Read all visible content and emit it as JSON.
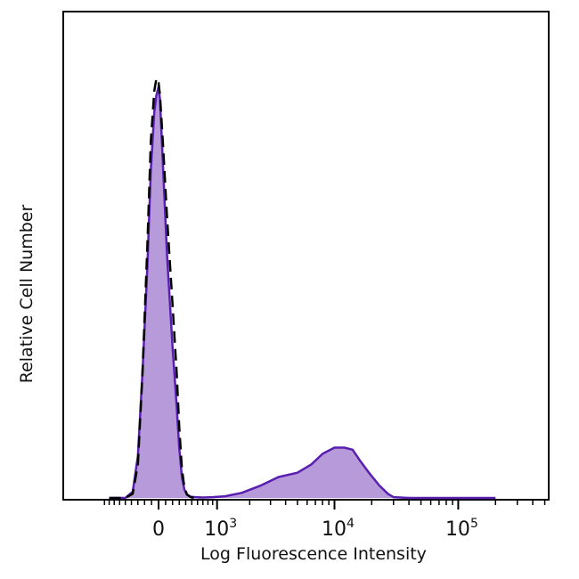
{
  "chart_data": {
    "type": "area",
    "title": "",
    "xlabel": "Log Fluorescence Intensity",
    "ylabel": "Relative Cell Number",
    "xscale": "biexponential",
    "ylim": [
      0,
      100
    ],
    "grid": false,
    "legend": "none",
    "x_ticks": [
      {
        "value": 0,
        "base": "0",
        "exponent": ""
      },
      {
        "value": 1000,
        "base": "10",
        "exponent": "3"
      },
      {
        "value": 10000,
        "base": "10",
        "exponent": "4"
      },
      {
        "value": 100000,
        "base": "10",
        "exponent": "5"
      }
    ],
    "series": [
      {
        "style": "filled",
        "fill_color": "#b79ad9",
        "line_color": "#5a1fb0",
        "x": [
          -800,
          -500,
          -380,
          -300,
          -230,
          -160,
          -110,
          -60,
          -30,
          0,
          20,
          60,
          120,
          200,
          260,
          300,
          340,
          380,
          420,
          480,
          560,
          700,
          900,
          1200,
          1700,
          2500,
          3500,
          5000,
          6500,
          8000,
          10000,
          12000,
          14000,
          16000,
          19000,
          23000,
          27000,
          30000,
          40000,
          60000,
          100000,
          200000
        ],
        "y": [
          0,
          0,
          1.5,
          10,
          30,
          55,
          78,
          92,
          96,
          98,
          95,
          80,
          58,
          36,
          22,
          12,
          5,
          2,
          0.8,
          0.3,
          0.2,
          0.1,
          0.2,
          0.4,
          1.2,
          3,
          5,
          6,
          8,
          10.5,
          12,
          12,
          11.5,
          9,
          6,
          3,
          1,
          0.2,
          0,
          0,
          0,
          0
        ]
      },
      {
        "style": "dashed",
        "line_color": "#000000",
        "x": [
          -800,
          -500,
          -380,
          -300,
          -230,
          -160,
          -110,
          -60,
          -30,
          0,
          20,
          60,
          120,
          200,
          260,
          300,
          340,
          380,
          420,
          480,
          560,
          650
        ],
        "y": [
          0,
          0,
          1,
          8,
          30,
          60,
          85,
          97,
          100,
          99,
          96,
          85,
          67,
          46,
          30,
          17,
          7,
          2.5,
          0.8,
          0.2,
          0,
          0
        ]
      }
    ]
  }
}
